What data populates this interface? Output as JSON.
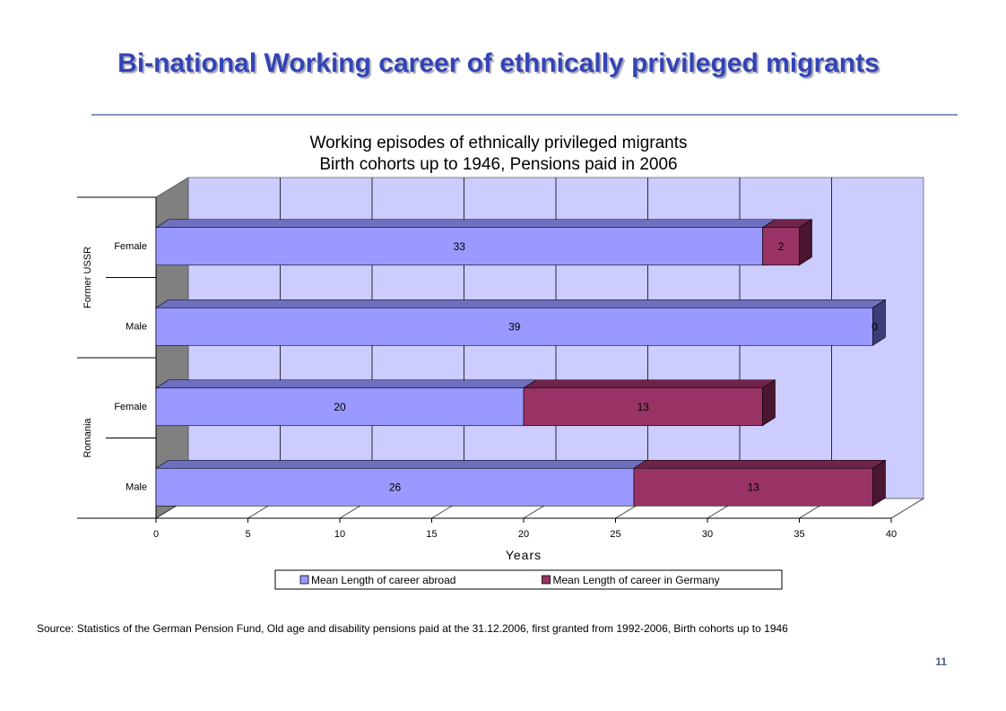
{
  "slide": {
    "title": "Bi-national Working career of ethnically privileged migrants",
    "source": "Source: Statistics of the German Pension Fund, Old age and disability pensions paid at the 31.12.2006,  first granted from 1992-2006,  Birth cohorts up to 1946",
    "page_number": "11"
  },
  "chart_data": {
    "type": "bar",
    "orientation": "horizontal",
    "stacked": true,
    "title": "Working episodes of ethnically privileged migrants",
    "subtitle": "Birth cohorts up to 1946, Pensions paid in 2006",
    "xlabel": "Years",
    "xlim": [
      0,
      40
    ],
    "xticks": [
      0,
      5,
      10,
      15,
      20,
      25,
      30,
      35,
      40
    ],
    "grid": true,
    "legend_position": "bottom",
    "groups": [
      {
        "label": "Former USSR",
        "categories": [
          "Female",
          "Male"
        ]
      },
      {
        "label": "Romania",
        "categories": [
          "Female",
          "Male"
        ]
      }
    ],
    "series": [
      {
        "name": "Mean Length of career abroad",
        "color": "#9999ff",
        "values": [
          33,
          39,
          20,
          26
        ]
      },
      {
        "name": "Mean Length of career in Germany",
        "color": "#993366",
        "values": [
          2,
          0,
          13,
          13
        ]
      }
    ],
    "colors": {
      "wall": "#ccccff",
      "side_wall": "#808080",
      "abroad_top": "#6f6fbf",
      "abroad_side": "#3c3c78",
      "germany_top": "#6e2449",
      "germany_side": "#4a1630"
    }
  }
}
